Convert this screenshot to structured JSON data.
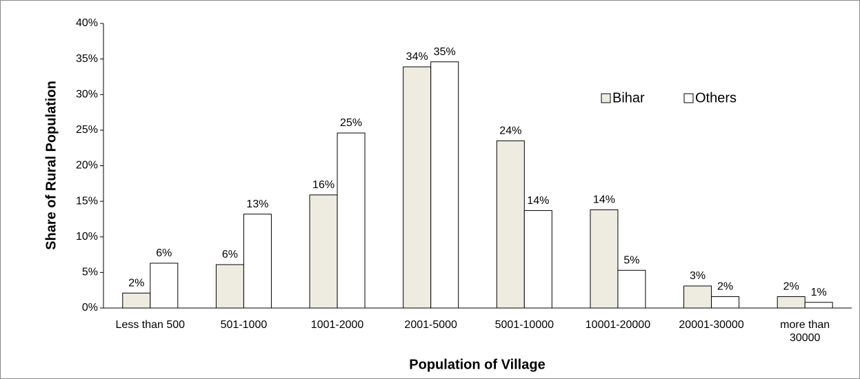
{
  "chart_data": {
    "type": "bar",
    "xlabel": "Population of Village",
    "ylabel": "Share of Rural Population",
    "categories": [
      "Less than 500",
      "501-1000",
      "1001-2000",
      "2001-5000",
      "5001-10000",
      "10001-20000",
      "20001-30000",
      "more than 30000"
    ],
    "series": [
      {
        "name": "Bihar",
        "color": "#eeece1",
        "values": [
          2.1,
          6.1,
          15.9,
          33.9,
          23.5,
          13.8,
          3.1,
          1.6
        ],
        "value_labels": [
          "2%",
          "6%",
          "16%",
          "34%",
          "24%",
          "14%",
          "3%",
          "2%"
        ]
      },
      {
        "name": "Others",
        "color": "#ffffff",
        "values": [
          6.3,
          13.2,
          24.6,
          34.6,
          13.7,
          5.3,
          1.6,
          0.8
        ],
        "value_labels": [
          "6%",
          "13%",
          "25%",
          "35%",
          "14%",
          "5%",
          "2%",
          "1%"
        ]
      }
    ],
    "ylim": [
      0,
      40
    ],
    "yticks": [
      {
        "value": 0,
        "label": "0%"
      },
      {
        "value": 5,
        "label": "5%"
      },
      {
        "value": 10,
        "label": "10%"
      },
      {
        "value": 15,
        "label": "15%"
      },
      {
        "value": 20,
        "label": "20%"
      },
      {
        "value": 25,
        "label": "25%"
      },
      {
        "value": 30,
        "label": "30%"
      },
      {
        "value": 35,
        "label": "35%"
      },
      {
        "value": 40,
        "label": "40%"
      }
    ],
    "legend": "upper right"
  }
}
